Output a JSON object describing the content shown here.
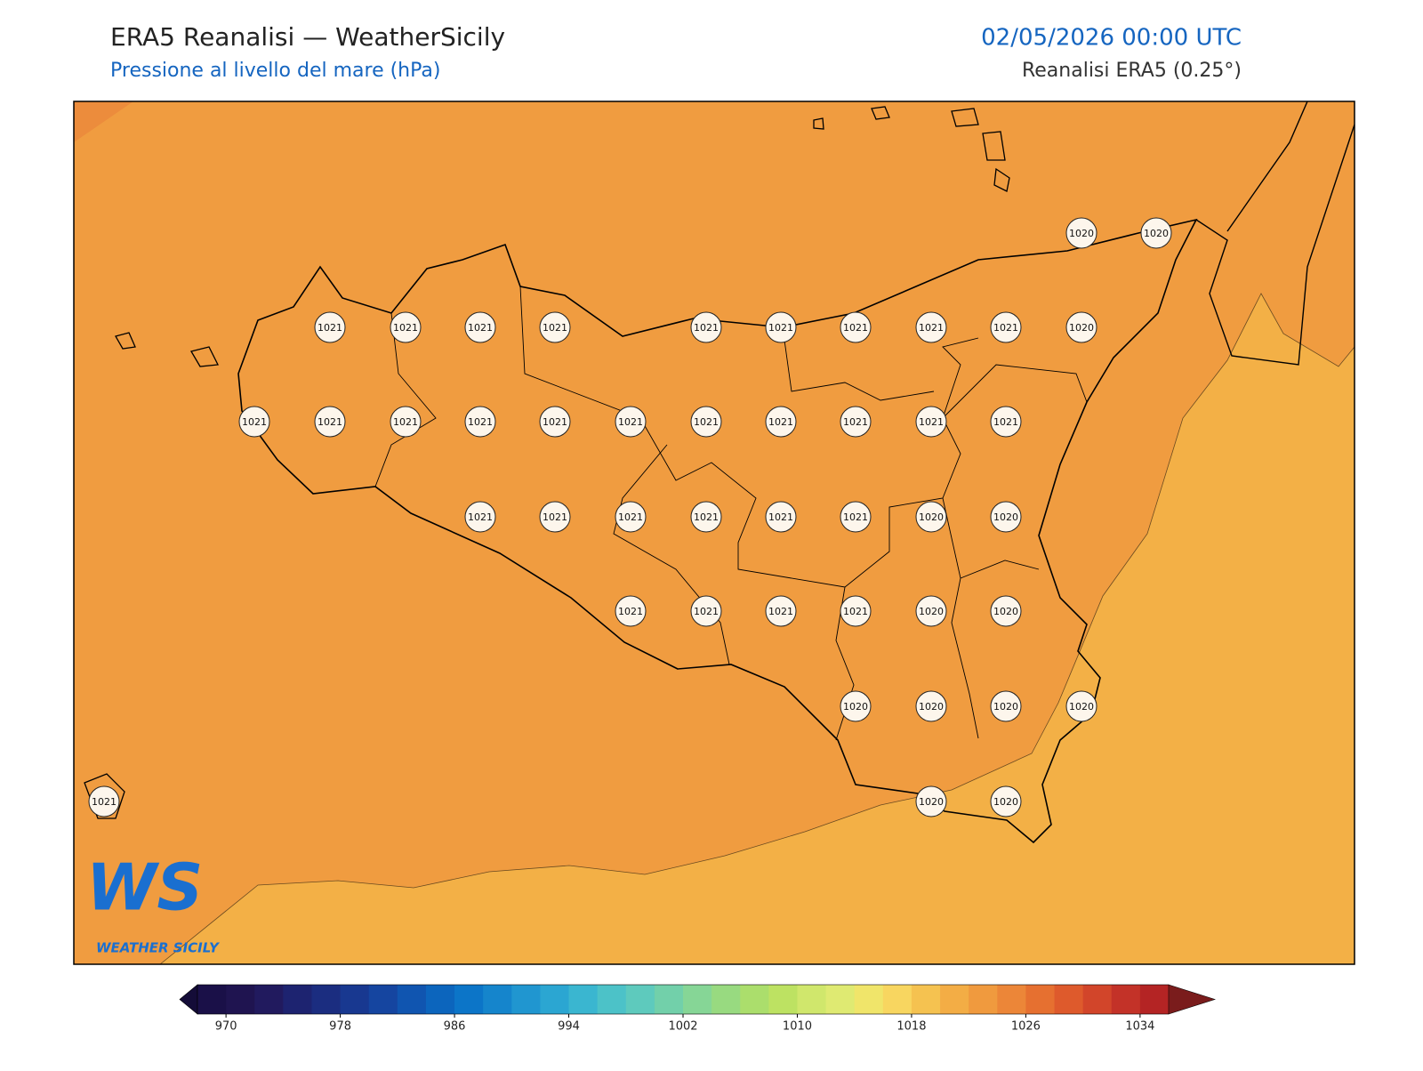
{
  "header": {
    "title": "ERA5 Reanalisi — WeatherSicily",
    "subtitle": "Pressione al livello del mare (hPa)",
    "date": "02/05/2026 00:00 UTC",
    "source": "Reanalisi ERA5 (0.25°)"
  },
  "map": {
    "labels": [
      1020,
      1020,
      1021,
      1021,
      1021,
      1021,
      1021,
      1021,
      1021,
      1021,
      1021,
      1020,
      1021,
      1021,
      1021,
      1021,
      1021,
      1021,
      1021,
      1021,
      1021,
      1021,
      1021,
      1021,
      1021,
      1021,
      1021,
      1021,
      1021,
      1020,
      1020,
      1021,
      1021,
      1021,
      1021,
      1020,
      1020,
      1020,
      1020,
      1020,
      1020,
      1021,
      1020,
      1020
    ]
  },
  "logo": {
    "mark": "WS",
    "name": "WEATHER SICILY"
  },
  "colorbar": {
    "range": [
      968,
      1036
    ],
    "ticks": [
      970,
      978,
      986,
      994,
      1002,
      1010,
      1018,
      1026,
      1034
    ],
    "colors": [
      "#1a1048",
      "#1f1450",
      "#211a5e",
      "#1d2370",
      "#1b2d80",
      "#183890",
      "#1545a0",
      "#1055b0",
      "#0c65bd",
      "#0c75c8",
      "#1585cc",
      "#2096d0",
      "#2ba6d2",
      "#3ab6d0",
      "#4cc2c8",
      "#5ecabd",
      "#72d0aa",
      "#86d696",
      "#98da80",
      "#abde6c",
      "#bde262",
      "#d0e76c",
      "#dfea72",
      "#f0e56a",
      "#f8d660",
      "#f5c250",
      "#f3ad45",
      "#f09a3e",
      "#ec8638",
      "#e67030",
      "#de5a2c",
      "#d2452a",
      "#c33228",
      "#b42424"
    ]
  }
}
